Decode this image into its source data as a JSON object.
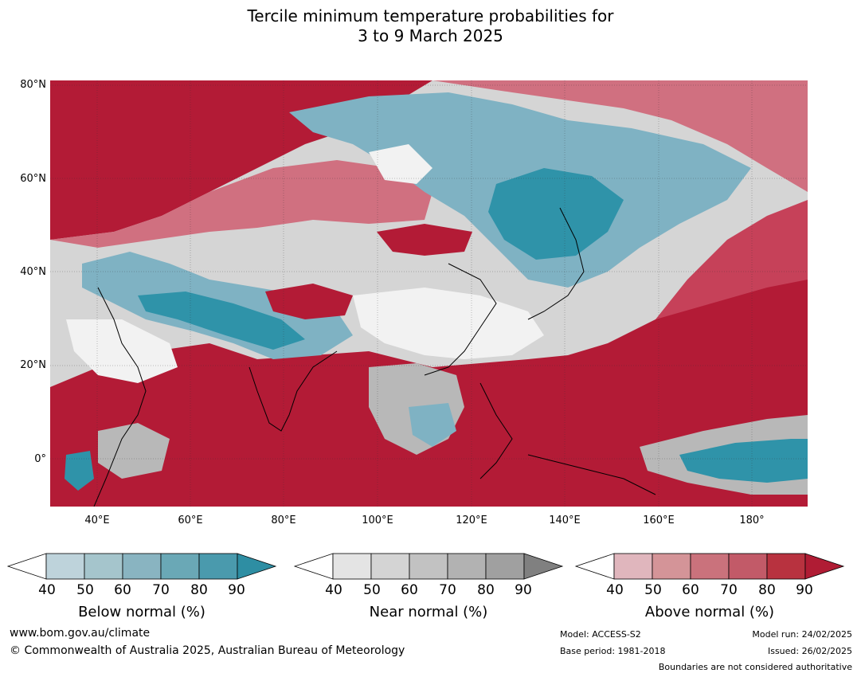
{
  "title": {
    "line1": "Tercile minimum temperature probabilities for",
    "line2": "3 to 9 March 2025"
  },
  "map": {
    "lat_labels": [
      "80°N",
      "60°N",
      "40°N",
      "20°N",
      "0°"
    ],
    "lon_labels": [
      "40°E",
      "60°E",
      "80°E",
      "100°E",
      "120°E",
      "140°E",
      "160°E",
      "180°"
    ],
    "colors": {
      "ocean_above": "#b31b36",
      "above_dark": "#c64159",
      "above_mid": "#d07080",
      "above_light": "#e0b6be",
      "near_white": "#f2f2f2",
      "near_light": "#d8d8d8",
      "near_mid": "#b8b8b8",
      "near_dark": "#9a9a9a",
      "below_light": "#bdd4dc",
      "below_mid": "#7fb2c3",
      "below_dark": "#2f93a9"
    }
  },
  "colorbars": [
    {
      "label": "Below normal (%)",
      "ticks": [
        "40",
        "50",
        "60",
        "70",
        "80",
        "90"
      ],
      "colors": [
        "#ffffff",
        "#bed3db",
        "#a5c5cc",
        "#89b4c1",
        "#6aa8b6",
        "#4a9aad",
        "#2e8ea3"
      ]
    },
    {
      "label": "Near normal (%)",
      "ticks": [
        "40",
        "50",
        "60",
        "70",
        "80",
        "90"
      ],
      "colors": [
        "#ffffff",
        "#e4e4e4",
        "#d4d4d4",
        "#c2c2c2",
        "#b2b2b2",
        "#a0a0a0",
        "#808080"
      ]
    },
    {
      "label": "Above normal (%)",
      "ticks": [
        "40",
        "50",
        "60",
        "70",
        "80",
        "90"
      ],
      "colors": [
        "#ffffff",
        "#e0b6bd",
        "#d49498",
        "#ca727c",
        "#c25a68",
        "#b8323f",
        "#b01c34"
      ]
    }
  ],
  "footer": {
    "website": "www.bom.gov.au/climate",
    "copyright": "© Commonwealth of Australia 2025, Australian Bureau of Meteorology",
    "model": "Model: ACCESS-S2",
    "base_period": "Base period: 1981-2018",
    "model_run": "Model run: 24/02/2025",
    "issued": "Issued: 26/02/2025",
    "disclaimer": "Boundaries are not considered authoritative"
  }
}
